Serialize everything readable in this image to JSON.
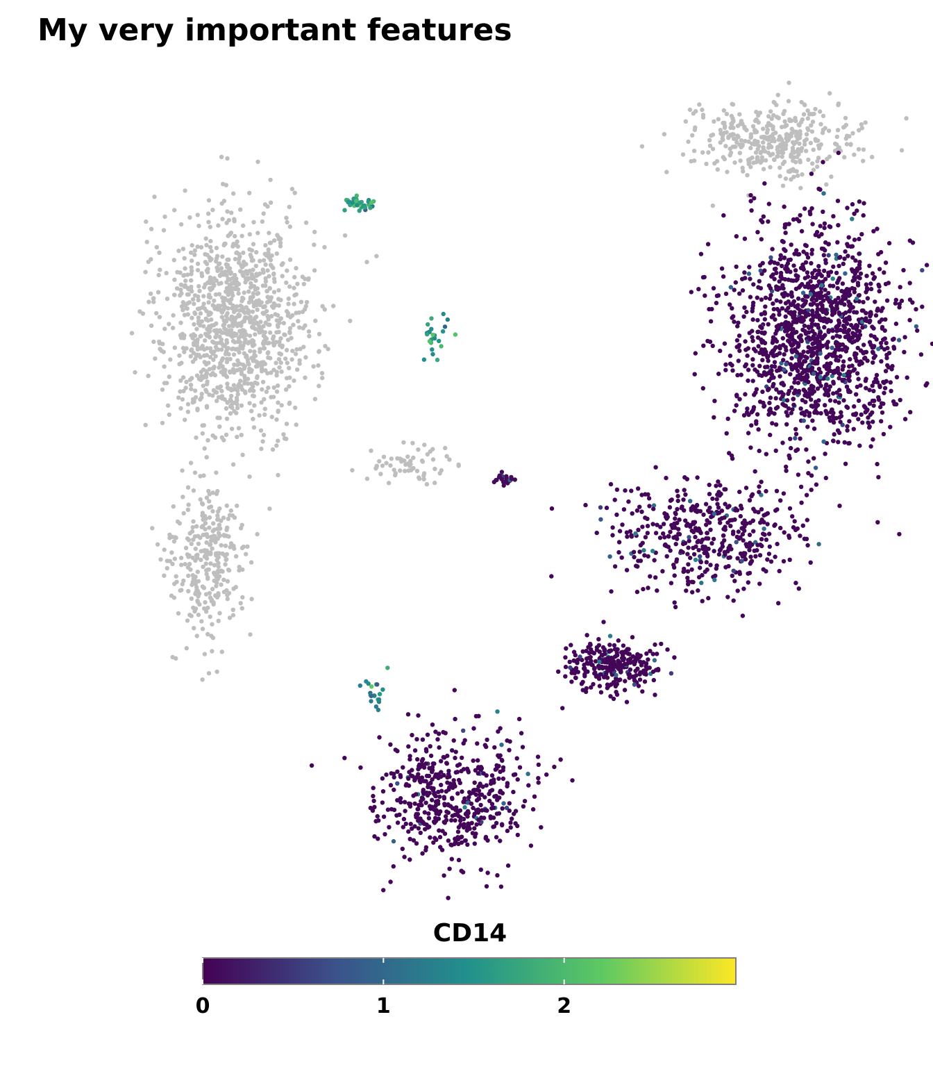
{
  "chart_data": {
    "type": "scatter",
    "title": "My very important features",
    "xlabel": "",
    "ylabel": "",
    "grid": false,
    "na_color": "#bebebe",
    "colorscale": "viridis",
    "colorbar": {
      "title": "CD14",
      "range": [
        0,
        2.95
      ],
      "ticks": [
        0,
        1,
        2
      ],
      "tick_labels": [
        "0",
        "1",
        "2"
      ],
      "colors": [
        "#440154",
        "#3b528b",
        "#21918c",
        "#5ec962",
        "#fde725"
      ],
      "placement": "bottom"
    },
    "clusters": [
      {
        "label": "gray-upper-left-mass",
        "value": null,
        "cx": -7.2,
        "cy": 9.8,
        "sx": 1.1,
        "sy": 1.6,
        "n": 1100
      },
      {
        "label": "gray-lower-lobe",
        "value": null,
        "cx": -8.0,
        "cy": 3.0,
        "sx": 0.55,
        "sy": 1.1,
        "n": 300
      },
      {
        "label": "gray-top-right",
        "value": null,
        "cx": 8.4,
        "cy": 15.0,
        "sx": 1.2,
        "sy": 0.55,
        "n": 380
      },
      {
        "label": "gray-mid-arm",
        "value": null,
        "cx": -2.2,
        "cy": 5.8,
        "sx": 0.7,
        "sy": 0.3,
        "n": 60
      },
      {
        "label": "right-big-blob",
        "value": 0.05,
        "cx": 9.6,
        "cy": 9.4,
        "sx": 1.25,
        "sy": 1.6,
        "n": 1400
      },
      {
        "label": "right-stem",
        "value": 0.05,
        "cx": 6.5,
        "cy": 3.8,
        "sx": 1.4,
        "sy": 0.8,
        "n": 450
      },
      {
        "label": "right-lower-blob",
        "value": 0.05,
        "cx": 3.8,
        "cy": 0.1,
        "sx": 0.7,
        "sy": 0.35,
        "n": 280
      },
      {
        "label": "bottom-ring",
        "value": 0.05,
        "cx": -0.9,
        "cy": -3.6,
        "sx": 1.1,
        "sy": 0.9,
        "n": 520
      },
      {
        "label": "small-dark-cluster",
        "value": 0.1,
        "cx": 0.6,
        "cy": 5.4,
        "sx": 0.15,
        "sy": 0.08,
        "n": 25
      },
      {
        "label": "top-cyan-cluster",
        "value": 1.7,
        "cx": -3.6,
        "cy": 13.2,
        "sx": 0.25,
        "sy": 0.1,
        "n": 40
      },
      {
        "label": "mid-teal-cluster",
        "value": 1.6,
        "cx": -1.4,
        "cy": 9.4,
        "sx": 0.2,
        "sy": 0.3,
        "n": 25
      },
      {
        "label": "left-teal-cluster",
        "value": 1.5,
        "cx": -3.1,
        "cy": -0.6,
        "sx": 0.15,
        "sy": 0.3,
        "n": 20
      }
    ]
  }
}
